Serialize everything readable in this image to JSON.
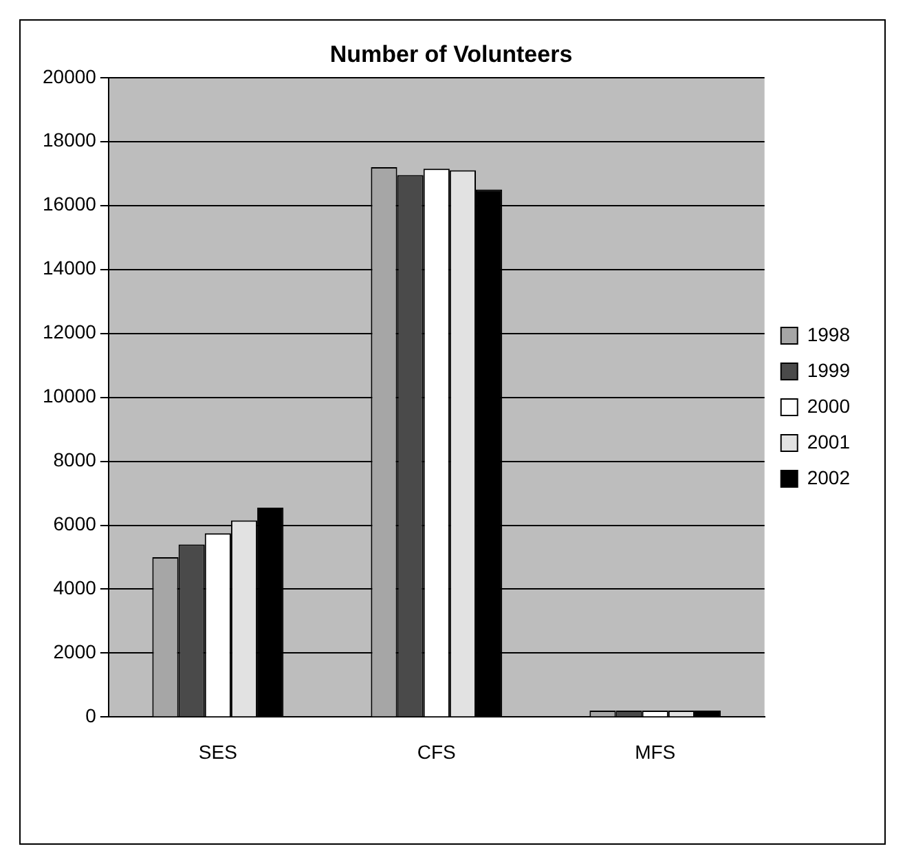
{
  "chart_data": {
    "type": "bar",
    "title": "Number of Volunteers",
    "categories": [
      "SES",
      "CFS",
      "MFS"
    ],
    "series": [
      {
        "name": "1998",
        "color": "#a6a6a6",
        "values": [
          5000,
          17200,
          200
        ]
      },
      {
        "name": "1999",
        "color": "#4a4a4a",
        "values": [
          5400,
          16950,
          200
        ]
      },
      {
        "name": "2000",
        "color": "#ffffff",
        "values": [
          5750,
          17150,
          200
        ]
      },
      {
        "name": "2001",
        "color": "#e2e2e2",
        "values": [
          6150,
          17100,
          200
        ]
      },
      {
        "name": "2002",
        "color": "#000000",
        "values": [
          6550,
          16500,
          200
        ]
      }
    ],
    "ylim": [
      0,
      20000
    ],
    "yticks": [
      0,
      2000,
      4000,
      6000,
      8000,
      10000,
      12000,
      14000,
      16000,
      18000,
      20000
    ],
    "grid": "y",
    "legend": "right"
  }
}
